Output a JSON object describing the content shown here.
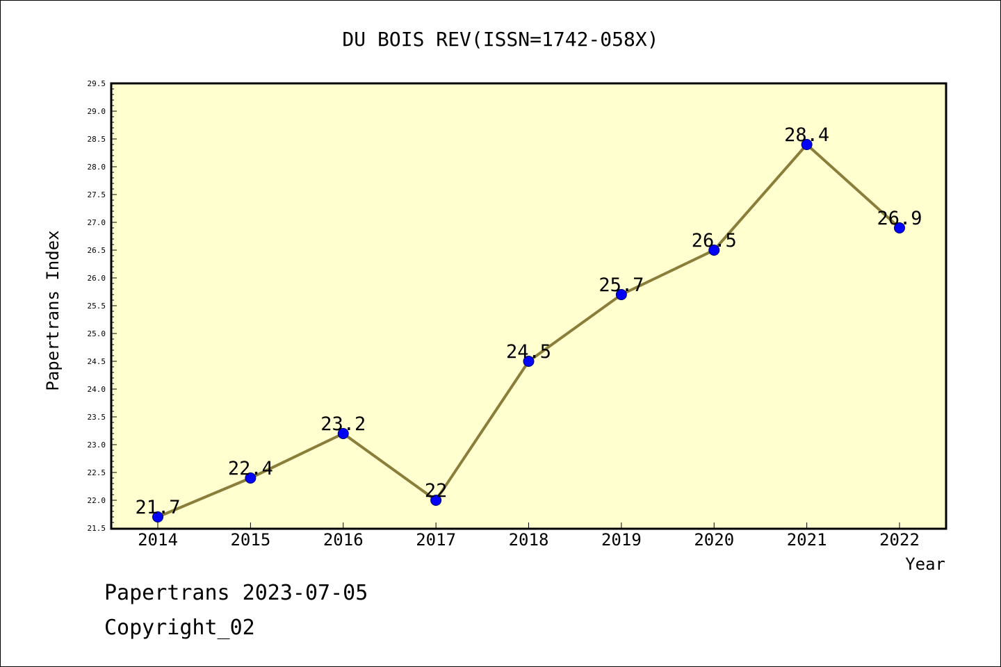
{
  "chart_data": {
    "type": "line",
    "title": "DU BOIS REV(ISSN=1742-058X)",
    "xlabel": "Year",
    "ylabel": "Papertrans Index",
    "categories": [
      "2014",
      "2015",
      "2016",
      "2017",
      "2018",
      "2019",
      "2020",
      "2021",
      "2022"
    ],
    "series": [
      {
        "values": [
          21.7,
          22.4,
          23.2,
          22,
          24.5,
          25.7,
          26.5,
          28.4,
          26.9
        ],
        "labels": [
          "21.7",
          "22.4",
          "23.2",
          "22",
          "24.5",
          "25.7",
          "26.5",
          "28.4",
          "26.9"
        ]
      }
    ],
    "ylim": [
      21.5,
      29.5
    ],
    "yticks": [
      "21.5",
      "22.0",
      "22.5",
      "23.0",
      "23.5",
      "24.0",
      "24.5",
      "25.0",
      "25.5",
      "26.0",
      "26.5",
      "27.0",
      "27.5",
      "28.0",
      "28.5",
      "29.0",
      "29.5"
    ],
    "grid": false,
    "colors": {
      "plot_background": "#ffffd0",
      "line": "#8b7d3a",
      "marker": "#0000ff"
    }
  },
  "footer": {
    "line1": "Papertrans 2023-07-05",
    "line2": "Copyright_02"
  }
}
